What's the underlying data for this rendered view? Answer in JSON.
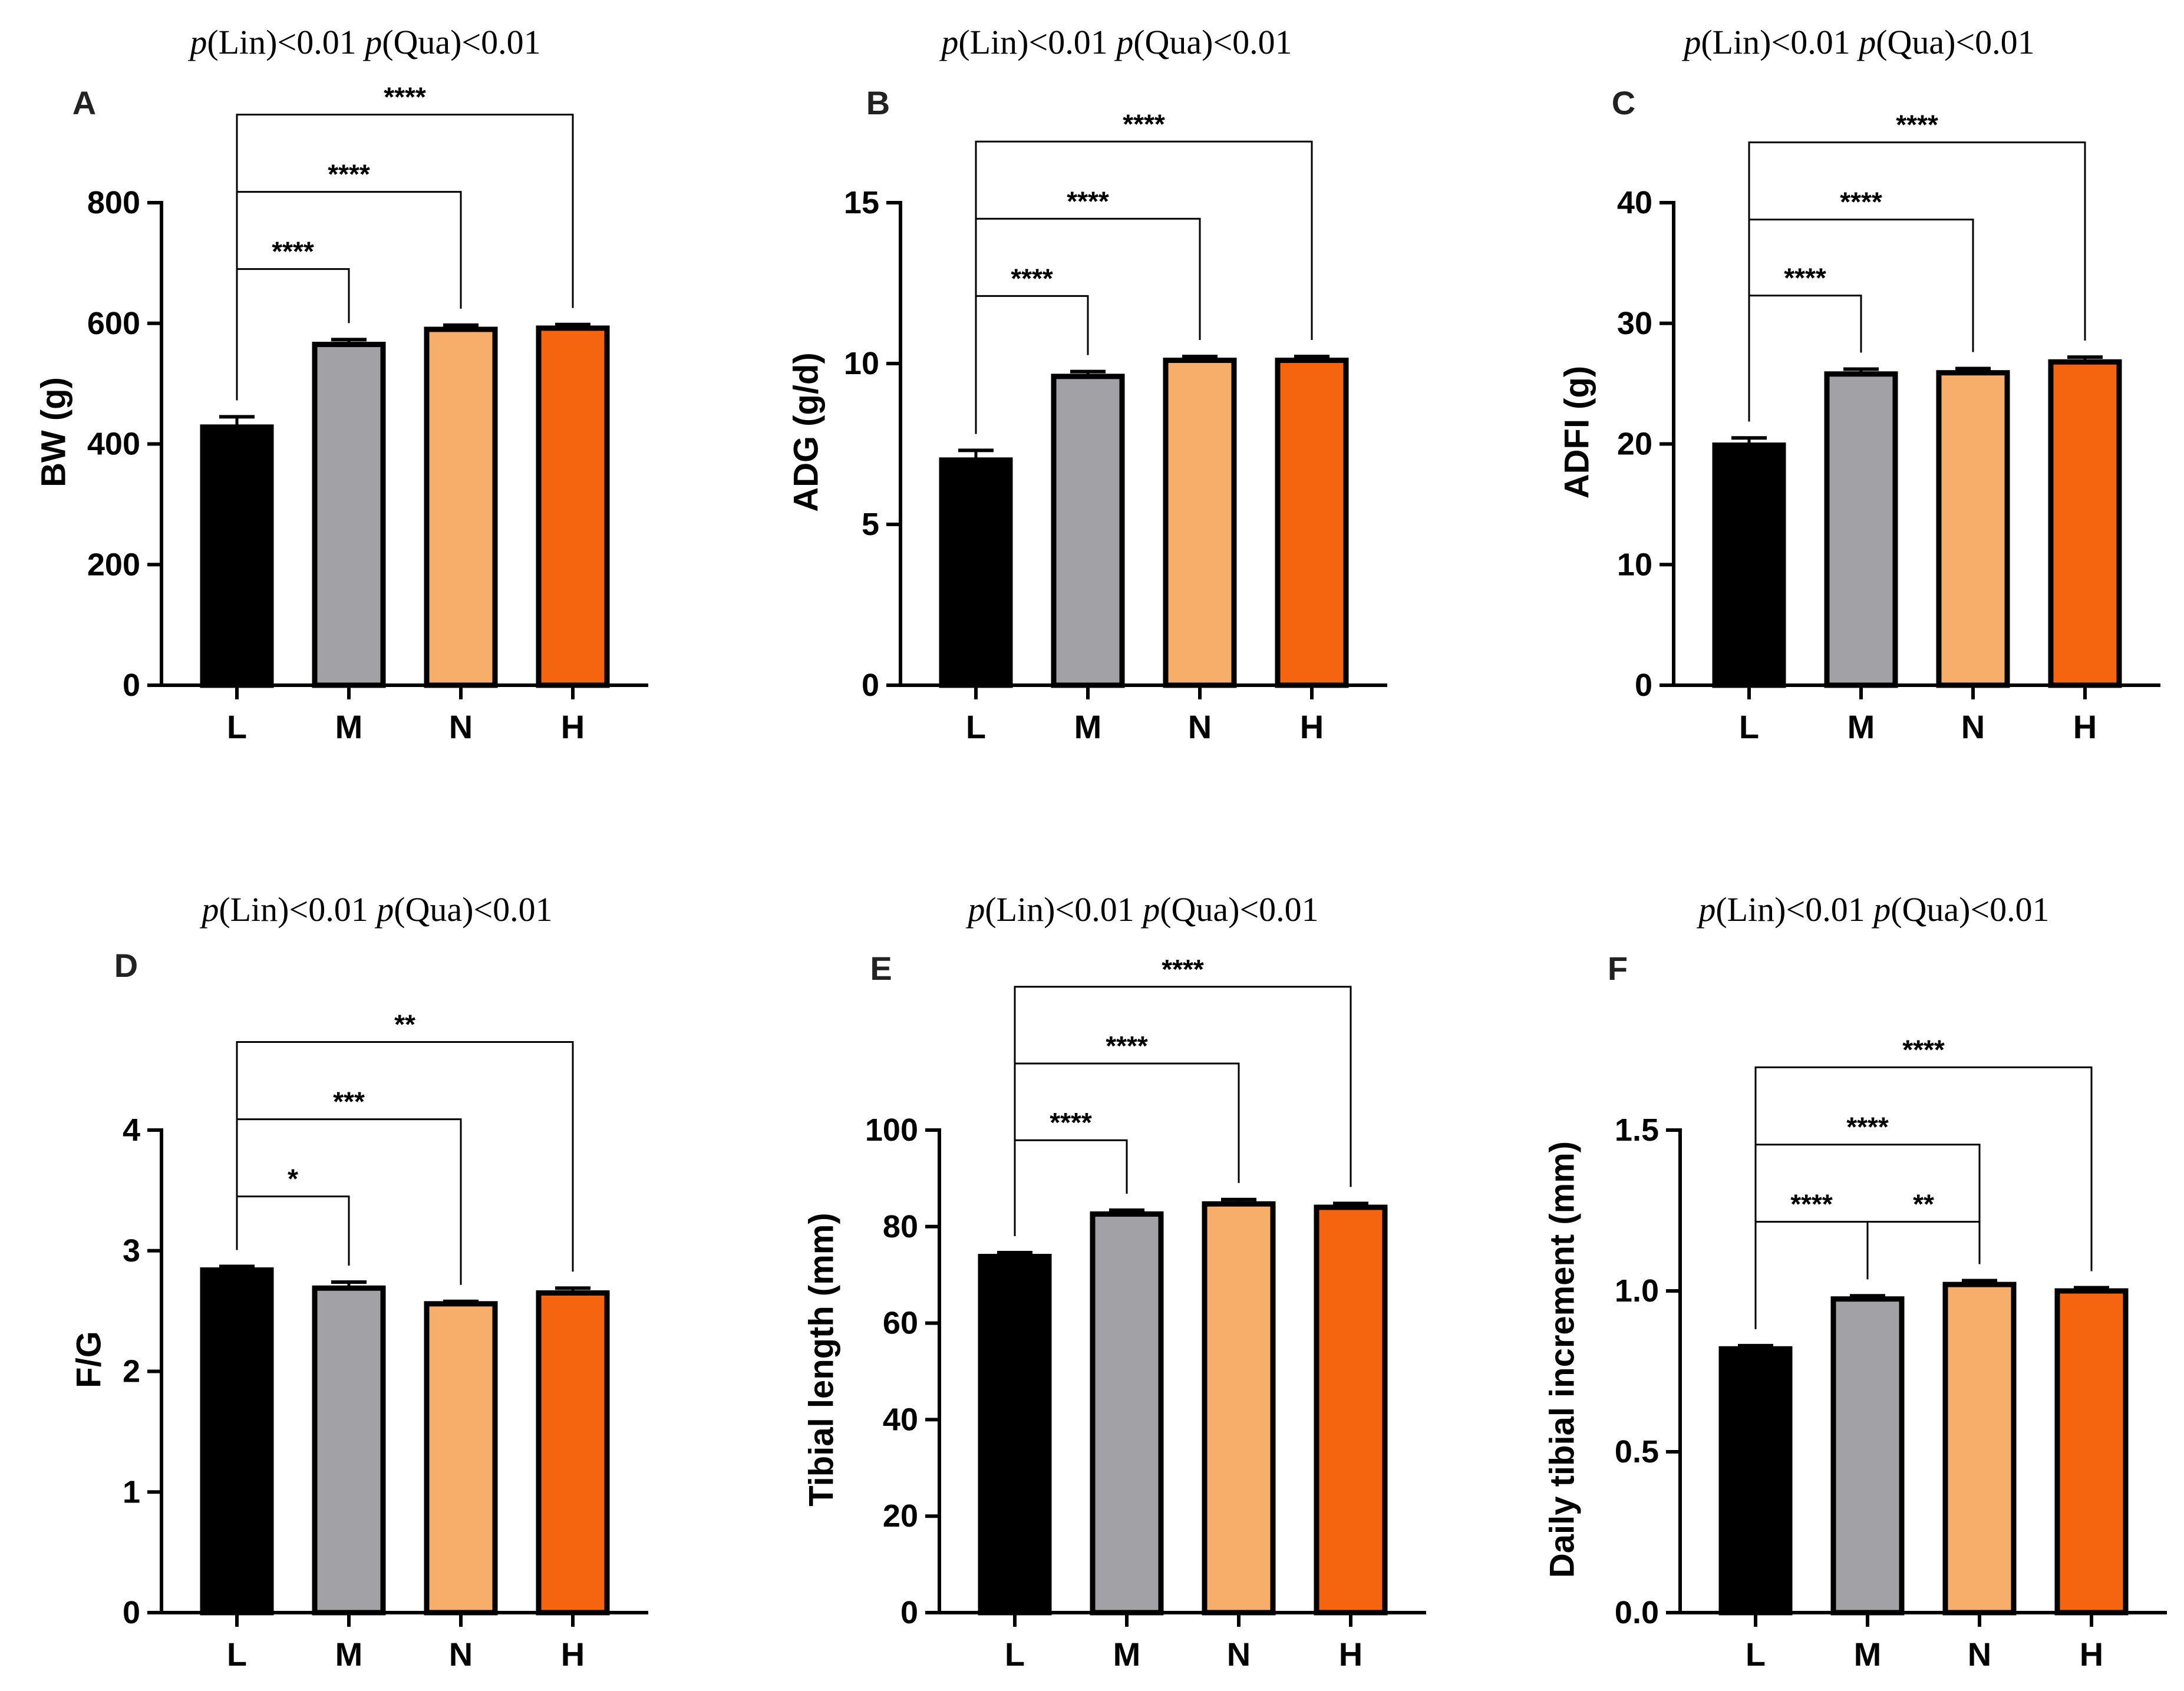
{
  "colors": {
    "L": "#000000",
    "M": "#a2a1a6",
    "N": "#f7ae6a",
    "H": "#f5650f",
    "stroke": "#000000"
  },
  "chart_data": [
    {
      "type": "bar",
      "panel": "A",
      "title": "p(Lin)<0.01 p(Qua)<0.01",
      "title_parts": {
        "p1": "p",
        "t1": "(Lin)<0.01 ",
        "p2": "p",
        "t2": "(Qua)<0.01"
      },
      "categories": [
        "L",
        "M",
        "N",
        "H"
      ],
      "values": [
        428,
        565,
        590,
        592
      ],
      "errors": [
        17,
        8,
        7,
        6
      ],
      "ylabel": "BW (g)",
      "ylim": [
        0,
        800
      ],
      "yticks": [
        0,
        200,
        400,
        600,
        800
      ],
      "ytick_labels": [
        "0",
        "200",
        "400",
        "600",
        "800"
      ],
      "significance": [
        {
          "from": "L",
          "to": "M",
          "label": "****",
          "y": 690
        },
        {
          "from": "L",
          "to": "N",
          "label": "****",
          "y": 818
        },
        {
          "from": "L",
          "to": "H",
          "label": "****",
          "y": 946
        }
      ]
    },
    {
      "type": "bar",
      "panel": "B",
      "title": "p(Lin)<0.01 p(Qua)<0.01",
      "title_parts": {
        "p1": "p",
        "t1": "(Lin)<0.01 ",
        "p2": "p",
        "t2": "(Qua)<0.01"
      },
      "categories": [
        "L",
        "M",
        "N",
        "H"
      ],
      "values": [
        7.0,
        9.6,
        10.1,
        10.1
      ],
      "errors": [
        0.3,
        0.15,
        0.12,
        0.12
      ],
      "ylabel": "ADG (g/d)",
      "ylim": [
        0,
        15
      ],
      "yticks": [
        0,
        5,
        10,
        15
      ],
      "ytick_labels": [
        "0",
        "5",
        "10",
        "15"
      ],
      "significance": [
        {
          "from": "L",
          "to": "M",
          "label": "****",
          "y": 12.1
        },
        {
          "from": "L",
          "to": "N",
          "label": "****",
          "y": 14.5
        },
        {
          "from": "L",
          "to": "H",
          "label": "****",
          "y": 16.9
        }
      ]
    },
    {
      "type": "bar",
      "panel": "C",
      "title": "p(Lin)<0.01 p(Qua)<0.01",
      "title_parts": {
        "p1": "p",
        "t1": "(Lin)<0.01 ",
        "p2": "p",
        "t2": "(Qua)<0.01"
      },
      "categories": [
        "L",
        "M",
        "N",
        "H"
      ],
      "values": [
        19.9,
        25.8,
        25.9,
        26.8
      ],
      "errors": [
        0.6,
        0.4,
        0.35,
        0.4
      ],
      "ylabel": "ADFI (g)",
      "ylim": [
        0,
        40
      ],
      "yticks": [
        0,
        10,
        20,
        30,
        40
      ],
      "ytick_labels": [
        "0",
        "10",
        "20",
        "30",
        "40"
      ],
      "significance": [
        {
          "from": "L",
          "to": "M",
          "label": "****",
          "y": 32.3
        },
        {
          "from": "L",
          "to": "N",
          "label": "****",
          "y": 38.6
        },
        {
          "from": "L",
          "to": "H",
          "label": "****",
          "y": 45.0
        }
      ]
    },
    {
      "type": "bar",
      "panel": "D",
      "title": "p(Lin)<0.01 p(Qua)<0.01",
      "title_parts": {
        "p1": "p",
        "t1": "(Lin)<0.01 ",
        "p2": "p",
        "t2": "(Qua)<0.01"
      },
      "categories": [
        "L",
        "M",
        "N",
        "H"
      ],
      "values": [
        2.84,
        2.69,
        2.56,
        2.65
      ],
      "errors": [
        0.03,
        0.05,
        0.02,
        0.04
      ],
      "ylabel": "F/G",
      "ylim": [
        0,
        4
      ],
      "yticks": [
        0,
        1,
        2,
        3,
        4
      ],
      "ytick_labels": [
        "0",
        "1",
        "2",
        "3",
        "4"
      ],
      "significance": [
        {
          "from": "L",
          "to": "M",
          "label": "*",
          "y": 3.45
        },
        {
          "from": "L",
          "to": "N",
          "label": "***",
          "y": 4.09
        },
        {
          "from": "L",
          "to": "H",
          "label": "**",
          "y": 4.73
        }
      ]
    },
    {
      "type": "bar",
      "panel": "E",
      "title": "p(Lin)<0.01 p(Qua)<0.01",
      "title_parts": {
        "p1": "p",
        "t1": "(Lin)<0.01 ",
        "p2": "p",
        "t2": "(Qua)<0.01"
      },
      "categories": [
        "L",
        "M",
        "N",
        "H"
      ],
      "values": [
        73.8,
        82.6,
        84.7,
        84.0
      ],
      "errors": [
        0.8,
        0.8,
        0.9,
        0.8
      ],
      "ylabel": "Tibial length (mm)",
      "ylim": [
        0,
        100
      ],
      "yticks": [
        0,
        20,
        40,
        60,
        80,
        100
      ],
      "ytick_labels": [
        "0",
        "20",
        "40",
        "60",
        "80",
        "100"
      ],
      "significance": [
        {
          "from": "L",
          "to": "M",
          "label": "****",
          "y": 97.9
        },
        {
          "from": "L",
          "to": "N",
          "label": "****",
          "y": 113.8
        },
        {
          "from": "L",
          "to": "H",
          "label": "****",
          "y": 129.7
        }
      ]
    },
    {
      "type": "bar",
      "panel": "F",
      "title": "p(Lin)<0.01 p(Qua)<0.01",
      "title_parts": {
        "p1": "p",
        "t1": "(Lin)<0.01 ",
        "p2": "p",
        "t2": "(Qua)<0.01"
      },
      "categories": [
        "L",
        "M",
        "N",
        "H"
      ],
      "values": [
        0.82,
        0.975,
        1.02,
        1.0
      ],
      "errors": [
        0.01,
        0.01,
        0.012,
        0.01
      ],
      "ylabel": "Daily tibial increment (mm)",
      "ylim": [
        0,
        1.5
      ],
      "yticks": [
        0,
        0.5,
        1.0,
        1.5
      ],
      "ytick_labels": [
        "0.0",
        "0.5",
        "1.0",
        "1.5"
      ],
      "significance": [
        {
          "from": "L",
          "to": "M",
          "label": "****",
          "y": 1.215
        },
        {
          "from": "M",
          "to": "N",
          "label": "**",
          "y": 1.215
        },
        {
          "from": "L",
          "to": "N",
          "label": "****",
          "y": 1.455
        },
        {
          "from": "L",
          "to": "H",
          "label": "****",
          "y": 1.695
        }
      ]
    }
  ]
}
